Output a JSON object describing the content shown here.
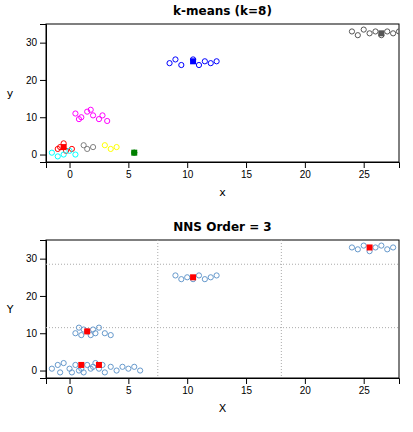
{
  "chart_data": [
    {
      "type": "scatter",
      "title": "k-means (k=8)",
      "xlabel": "x",
      "ylabel": "y",
      "xlim": [
        -2,
        28
      ],
      "ylim": [
        -2,
        35
      ],
      "xticks": [
        0,
        5,
        10,
        15,
        20,
        25
      ],
      "yticks": [
        0,
        10,
        20,
        30
      ],
      "grid": false,
      "series": [
        {
          "color": "red",
          "marker": "circle",
          "x": [
            -0.8,
            -0.3,
            0.2,
            -0.5,
            -1.0
          ],
          "values": [
            2.0,
            1.0,
            1.5,
            3.0,
            1.5
          ]
        },
        {
          "color": "red",
          "marker": "square",
          "x": [
            -0.5
          ],
          "values": [
            2.0
          ]
        },
        {
          "color": "magenta",
          "marker": "circle",
          "x": [
            0.5,
            1.0,
            1.5,
            2.0,
            2.5,
            1.8,
            0.8,
            2.8,
            3.2
          ],
          "values": [
            11.0,
            10.0,
            11.5,
            10.5,
            9.5,
            12.0,
            9.5,
            10.5,
            9.0
          ]
        },
        {
          "color": "gray",
          "marker": "circle",
          "x": [
            1.2,
            1.5,
            2.0
          ],
          "values": [
            2.5,
            1.5,
            2.0
          ]
        },
        {
          "color": "yellow",
          "marker": "circle",
          "x": [
            3.0,
            3.5,
            4.0
          ],
          "values": [
            2.5,
            1.5,
            2.0
          ]
        },
        {
          "color": "cyan",
          "marker": "circle",
          "x": [
            -1.5,
            -1.0,
            -0.5,
            0.0,
            0.5
          ],
          "values": [
            0.5,
            -0.5,
            0.0,
            1.0,
            0.0
          ]
        },
        {
          "color": "green",
          "marker": "circle",
          "x": [
            5.5
          ],
          "values": [
            0.5
          ]
        },
        {
          "color": "green",
          "marker": "square",
          "x": [
            5.5
          ],
          "values": [
            0.5
          ]
        },
        {
          "color": "blue",
          "marker": "circle",
          "x": [
            8.5,
            9.0,
            9.5,
            10.5,
            11.0,
            11.5,
            12.0,
            12.5
          ],
          "values": [
            24.5,
            25.5,
            24.0,
            25.5,
            24.0,
            25.0,
            24.5,
            25.0
          ]
        },
        {
          "color": "blue",
          "marker": "square",
          "x": [
            10.5
          ],
          "values": [
            25.0
          ]
        },
        {
          "color": "#555555",
          "marker": "circle",
          "x": [
            24.0,
            24.5,
            25.0,
            25.5,
            26.0,
            26.5,
            27.0,
            27.5,
            28.0
          ],
          "values": [
            33.0,
            32.0,
            33.5,
            32.5,
            33.0,
            32.0,
            33.0,
            32.5,
            33.0
          ]
        },
        {
          "color": "#555555",
          "marker": "square",
          "x": [
            26.5
          ],
          "values": [
            32.5
          ]
        }
      ]
    },
    {
      "type": "scatter",
      "title": "NNS Order = 3",
      "xlabel": "X",
      "ylabel": "Y",
      "xlim": [
        -2,
        28
      ],
      "ylim": [
        -2,
        35
      ],
      "xticks": [
        0,
        5,
        10,
        15,
        20,
        25
      ],
      "yticks": [
        0,
        10,
        20,
        30
      ],
      "grid": false,
      "series": [
        {
          "color": "#6699cc",
          "marker": "circle",
          "x": [
            -1.5,
            -1.0,
            -0.8,
            -0.5,
            0.0,
            0.2,
            0.5,
            0.8,
            1.0,
            1.2,
            1.5,
            1.8,
            2.0,
            2.2,
            2.5,
            2.8,
            3.0,
            3.5,
            4.0,
            4.5,
            5.0,
            5.5,
            6.0,
            0.5,
            0.8,
            1.0,
            1.2,
            1.5,
            1.8,
            2.0,
            2.2,
            2.5,
            3.0,
            3.5,
            9.0,
            9.5,
            10.0,
            10.5,
            11.0,
            11.5,
            12.0,
            12.5,
            24.0,
            24.5,
            25.0,
            25.5,
            26.0,
            26.5,
            27.0,
            27.5
          ],
          "values": [
            0.5,
            1.5,
            -0.5,
            2.0,
            0.5,
            -0.5,
            1.5,
            0.0,
            0.5,
            -0.5,
            1.5,
            0.5,
            1.0,
            2.0,
            0.5,
            1.5,
            -0.5,
            1.0,
            0.0,
            1.0,
            0.5,
            1.0,
            0.0,
            10.0,
            11.5,
            9.5,
            11.0,
            10.5,
            9.5,
            11.0,
            10.0,
            11.5,
            10.0,
            9.5,
            25.5,
            24.5,
            25.0,
            24.5,
            25.5,
            24.5,
            25.0,
            25.5,
            33.0,
            32.5,
            33.5,
            32.0,
            33.0,
            33.5,
            32.5,
            33.0
          ]
        },
        {
          "color": "red",
          "marker": "square",
          "x": [
            1.0,
            2.5,
            1.5,
            10.5,
            25.5
          ],
          "values": [
            1.5,
            1.5,
            10.5,
            25.0,
            33.0
          ]
        },
        {
          "type": "vline",
          "color": "#aaaaaa",
          "line_style": "dotted",
          "values": [
            7.5,
            18.0
          ]
        },
        {
          "type": "hline",
          "color": "#aaaaaa",
          "line_style": "dotted",
          "values": [
            11.5,
            28.5
          ]
        }
      ]
    }
  ]
}
